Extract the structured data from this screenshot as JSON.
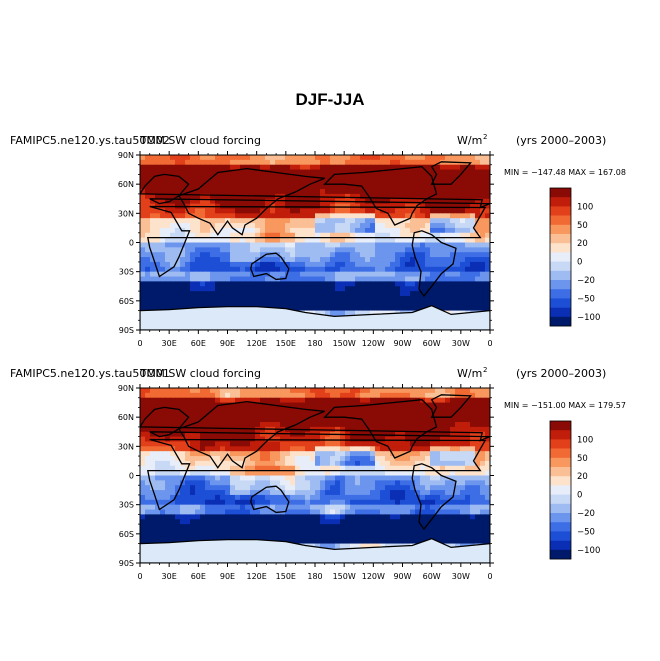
{
  "figure": {
    "title": "DJF-JJA"
  },
  "colors": {
    "scale": [
      "#001a6b",
      "#0a2fb5",
      "#1c4fd6",
      "#3d6ee6",
      "#6c95ee",
      "#9fbcf2",
      "#c8d9f6",
      "#e7eefa",
      "#fde2cc",
      "#fbbf95",
      "#f8975e",
      "#f26a33",
      "#e2401b",
      "#c11d0b",
      "#8a0a05"
    ],
    "coastline": "#000000",
    "antarctica_fill": "#dbe9f9"
  },
  "chart_data": [
    {
      "type": "heatmap",
      "panel": "top",
      "case_label": "FAMIPC5.ne120.ys.tau50M02",
      "variable_label": "TOM SW cloud forcing",
      "units_prefix": "W/m",
      "units_exp": "2",
      "years": "(yrs 2000–2003)",
      "min_label": "MIN = −147.48",
      "max_label": "MAX = 167.08",
      "min": -147.48,
      "max": 167.08,
      "x_ticks": [
        "0",
        "30E",
        "60E",
        "90E",
        "120E",
        "150E",
        "180",
        "150W",
        "120W",
        "90W",
        "60W",
        "30W",
        "0"
      ],
      "y_ticks": [
        "90N",
        "60N",
        "30N",
        "0",
        "30S",
        "60S",
        "90S"
      ],
      "colorbar_labels": [
        "100",
        "50",
        "20",
        "0",
        "−20",
        "−50",
        "−100"
      ],
      "xlim": [
        0,
        360
      ],
      "ylim": [
        -90,
        90
      ]
    },
    {
      "type": "heatmap",
      "panel": "bottom",
      "case_label": "FAMIPC5.ne120.ys.tau50M01",
      "variable_label": "TOM SW cloud forcing",
      "units_prefix": "W/m",
      "units_exp": "2",
      "years": "(yrs 2000–2003)",
      "min_label": "MIN = −151.00",
      "max_label": "MAX = 179.57",
      "min": -151.0,
      "max": 179.57,
      "x_ticks": [
        "0",
        "30E",
        "60E",
        "90E",
        "120E",
        "150E",
        "180",
        "150W",
        "120W",
        "90W",
        "60W",
        "30W",
        "0"
      ],
      "y_ticks": [
        "90N",
        "60N",
        "30N",
        "0",
        "30S",
        "60S",
        "90S"
      ],
      "colorbar_labels": [
        "100",
        "50",
        "20",
        "0",
        "−20",
        "−50",
        "−100"
      ],
      "xlim": [
        0,
        360
      ],
      "ylim": [
        -90,
        90
      ]
    }
  ]
}
